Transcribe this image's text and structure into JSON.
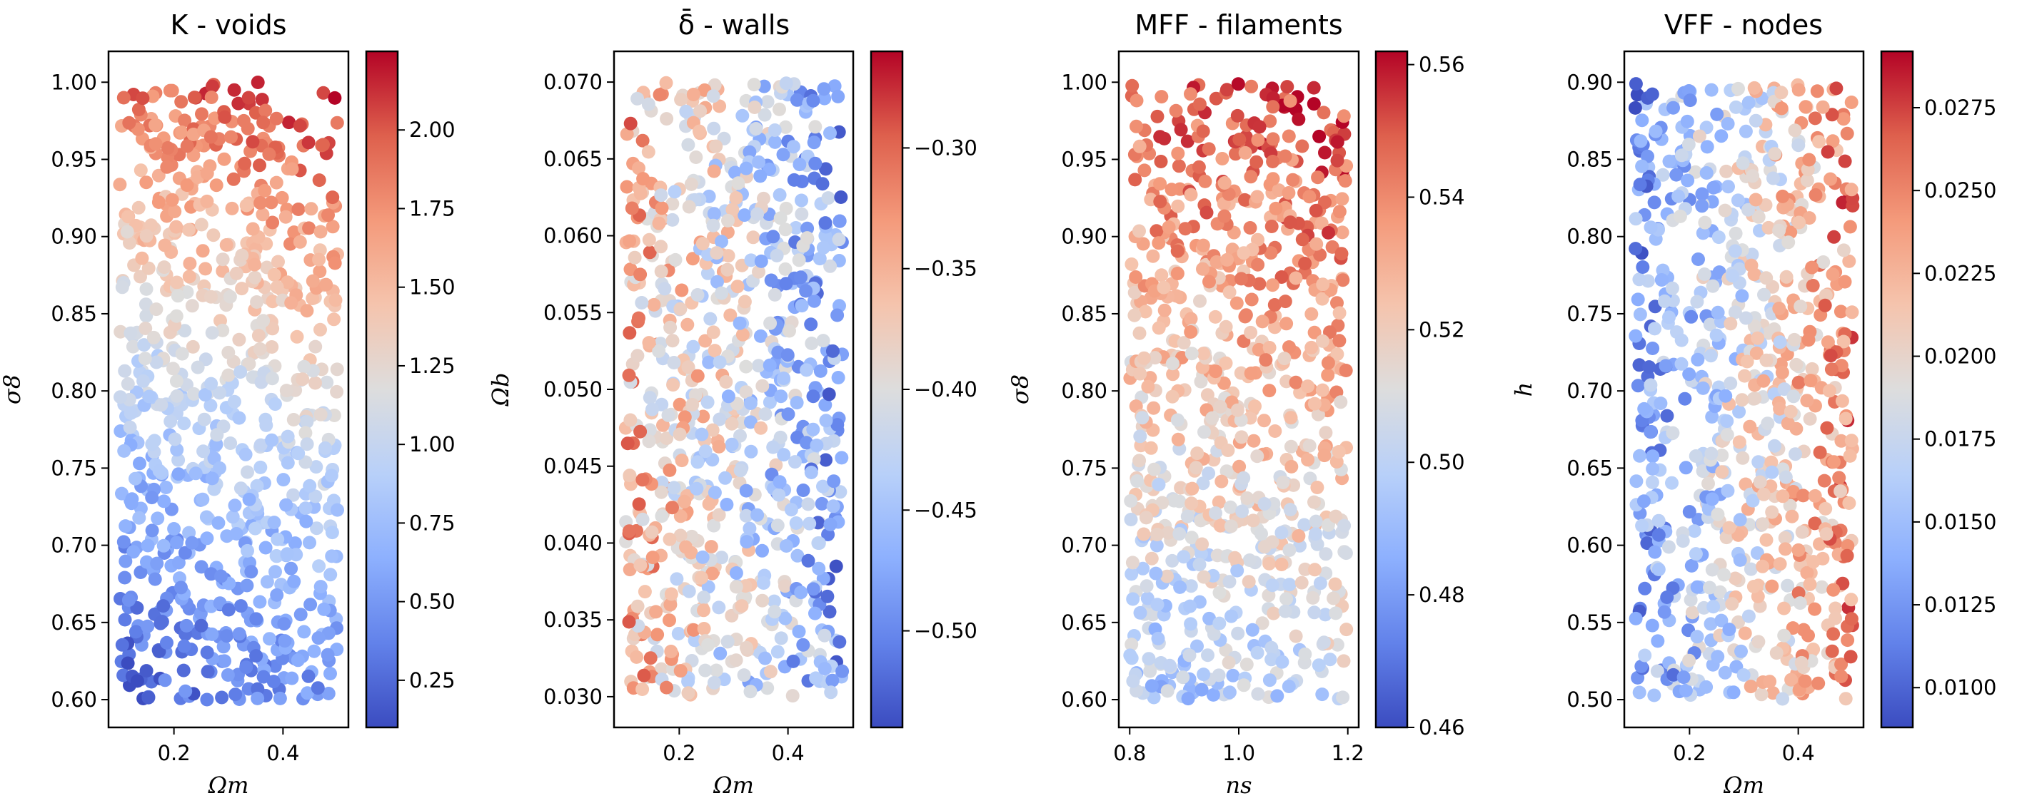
{
  "figure": {
    "colormap": "coolwarm"
  },
  "chart_data": [
    {
      "type": "scatter",
      "title": "K - voids",
      "xlabel": "Ωm",
      "ylabel": "σ8",
      "xlim": [
        0.08,
        0.52
      ],
      "ylim": [
        0.582,
        1.02
      ],
      "xticks": [
        0.2,
        0.4
      ],
      "xtick_labels": [
        "0.2",
        "0.4"
      ],
      "yticks": [
        0.6,
        0.65,
        0.7,
        0.75,
        0.8,
        0.85,
        0.9,
        0.95,
        1.0
      ],
      "ytick_labels": [
        "0.60",
        "0.65",
        "0.70",
        "0.75",
        "0.80",
        "0.85",
        "0.90",
        "0.95",
        "1.00"
      ],
      "x_range": [
        0.1,
        0.5
      ],
      "y_range": [
        0.6,
        1.0
      ],
      "point_count": 800,
      "colorbar": {
        "range": [
          0.1,
          2.25
        ],
        "ticks": [
          0.25,
          0.5,
          0.75,
          1.0,
          1.25,
          1.5,
          1.75,
          2.0
        ],
        "tick_labels": [
          "0.25",
          "0.50",
          "0.75",
          "1.00",
          "1.25",
          "1.50",
          "1.75",
          "2.00"
        ]
      },
      "trend": "color increases strongly with σ8 (low at bottom, high at top), slightly with Ωm"
    },
    {
      "type": "scatter",
      "title": "δ̄ - walls",
      "xlabel": "Ωm",
      "ylabel": "Ωb",
      "xlim": [
        0.08,
        0.52
      ],
      "ylim": [
        0.028,
        0.072
      ],
      "xticks": [
        0.2,
        0.4
      ],
      "xtick_labels": [
        "0.2",
        "0.4"
      ],
      "yticks": [
        0.03,
        0.035,
        0.04,
        0.045,
        0.05,
        0.055,
        0.06,
        0.065,
        0.07
      ],
      "ytick_labels": [
        "0.030",
        "0.035",
        "0.040",
        "0.045",
        "0.050",
        "0.055",
        "0.060",
        "0.065",
        "0.070"
      ],
      "x_range": [
        0.1,
        0.5
      ],
      "y_range": [
        0.03,
        0.07
      ],
      "point_count": 800,
      "colorbar": {
        "range": [
          -0.54,
          -0.26
        ],
        "ticks": [
          -0.5,
          -0.45,
          -0.4,
          -0.35,
          -0.3
        ],
        "tick_labels": [
          "−0.50",
          "−0.45",
          "−0.40",
          "−0.35",
          "−0.30"
        ]
      },
      "trend": "color decreases with Ωm (red at left, blue at right)"
    },
    {
      "type": "scatter",
      "title": "MFF - filaments",
      "xlabel": "ns",
      "ylabel": "σ8",
      "xlim": [
        0.78,
        1.22
      ],
      "ylim": [
        0.582,
        1.02
      ],
      "xticks": [
        0.8,
        1.0,
        1.2
      ],
      "xtick_labels": [
        "0.8",
        "1.0",
        "1.2"
      ],
      "yticks": [
        0.6,
        0.65,
        0.7,
        0.75,
        0.8,
        0.85,
        0.9,
        0.95,
        1.0
      ],
      "ytick_labels": [
        "0.60",
        "0.65",
        "0.70",
        "0.75",
        "0.80",
        "0.85",
        "0.90",
        "0.95",
        "1.00"
      ],
      "x_range": [
        0.8,
        1.2
      ],
      "y_range": [
        0.6,
        1.0
      ],
      "point_count": 800,
      "colorbar": {
        "range": [
          0.46,
          0.562
        ],
        "ticks": [
          0.46,
          0.48,
          0.5,
          0.52,
          0.54,
          0.56
        ],
        "tick_labels": [
          "0.46",
          "0.48",
          "0.50",
          "0.52",
          "0.54",
          "0.56"
        ]
      },
      "trend": "color increases with σ8 and slightly with ns"
    },
    {
      "type": "scatter",
      "title": "VFF - nodes",
      "xlabel": "Ωm",
      "ylabel": "h",
      "xlim": [
        0.08,
        0.52
      ],
      "ylim": [
        0.482,
        0.92
      ],
      "xticks": [
        0.2,
        0.4
      ],
      "xtick_labels": [
        "0.2",
        "0.4"
      ],
      "yticks": [
        0.5,
        0.55,
        0.6,
        0.65,
        0.7,
        0.75,
        0.8,
        0.85,
        0.9
      ],
      "ytick_labels": [
        "0.50",
        "0.55",
        "0.60",
        "0.65",
        "0.70",
        "0.75",
        "0.80",
        "0.85",
        "0.90"
      ],
      "x_range": [
        0.1,
        0.5
      ],
      "y_range": [
        0.5,
        0.9
      ],
      "point_count": 800,
      "colorbar": {
        "range": [
          0.0088,
          0.0292
        ],
        "ticks": [
          0.01,
          0.0125,
          0.015,
          0.0175,
          0.02,
          0.0225,
          0.025,
          0.0275
        ],
        "tick_labels": [
          "0.0100",
          "0.0125",
          "0.0150",
          "0.0175",
          "0.0200",
          "0.0225",
          "0.0250",
          "0.0275"
        ]
      },
      "trend": "color increases with Ωm (blue at left, red at right)"
    }
  ]
}
